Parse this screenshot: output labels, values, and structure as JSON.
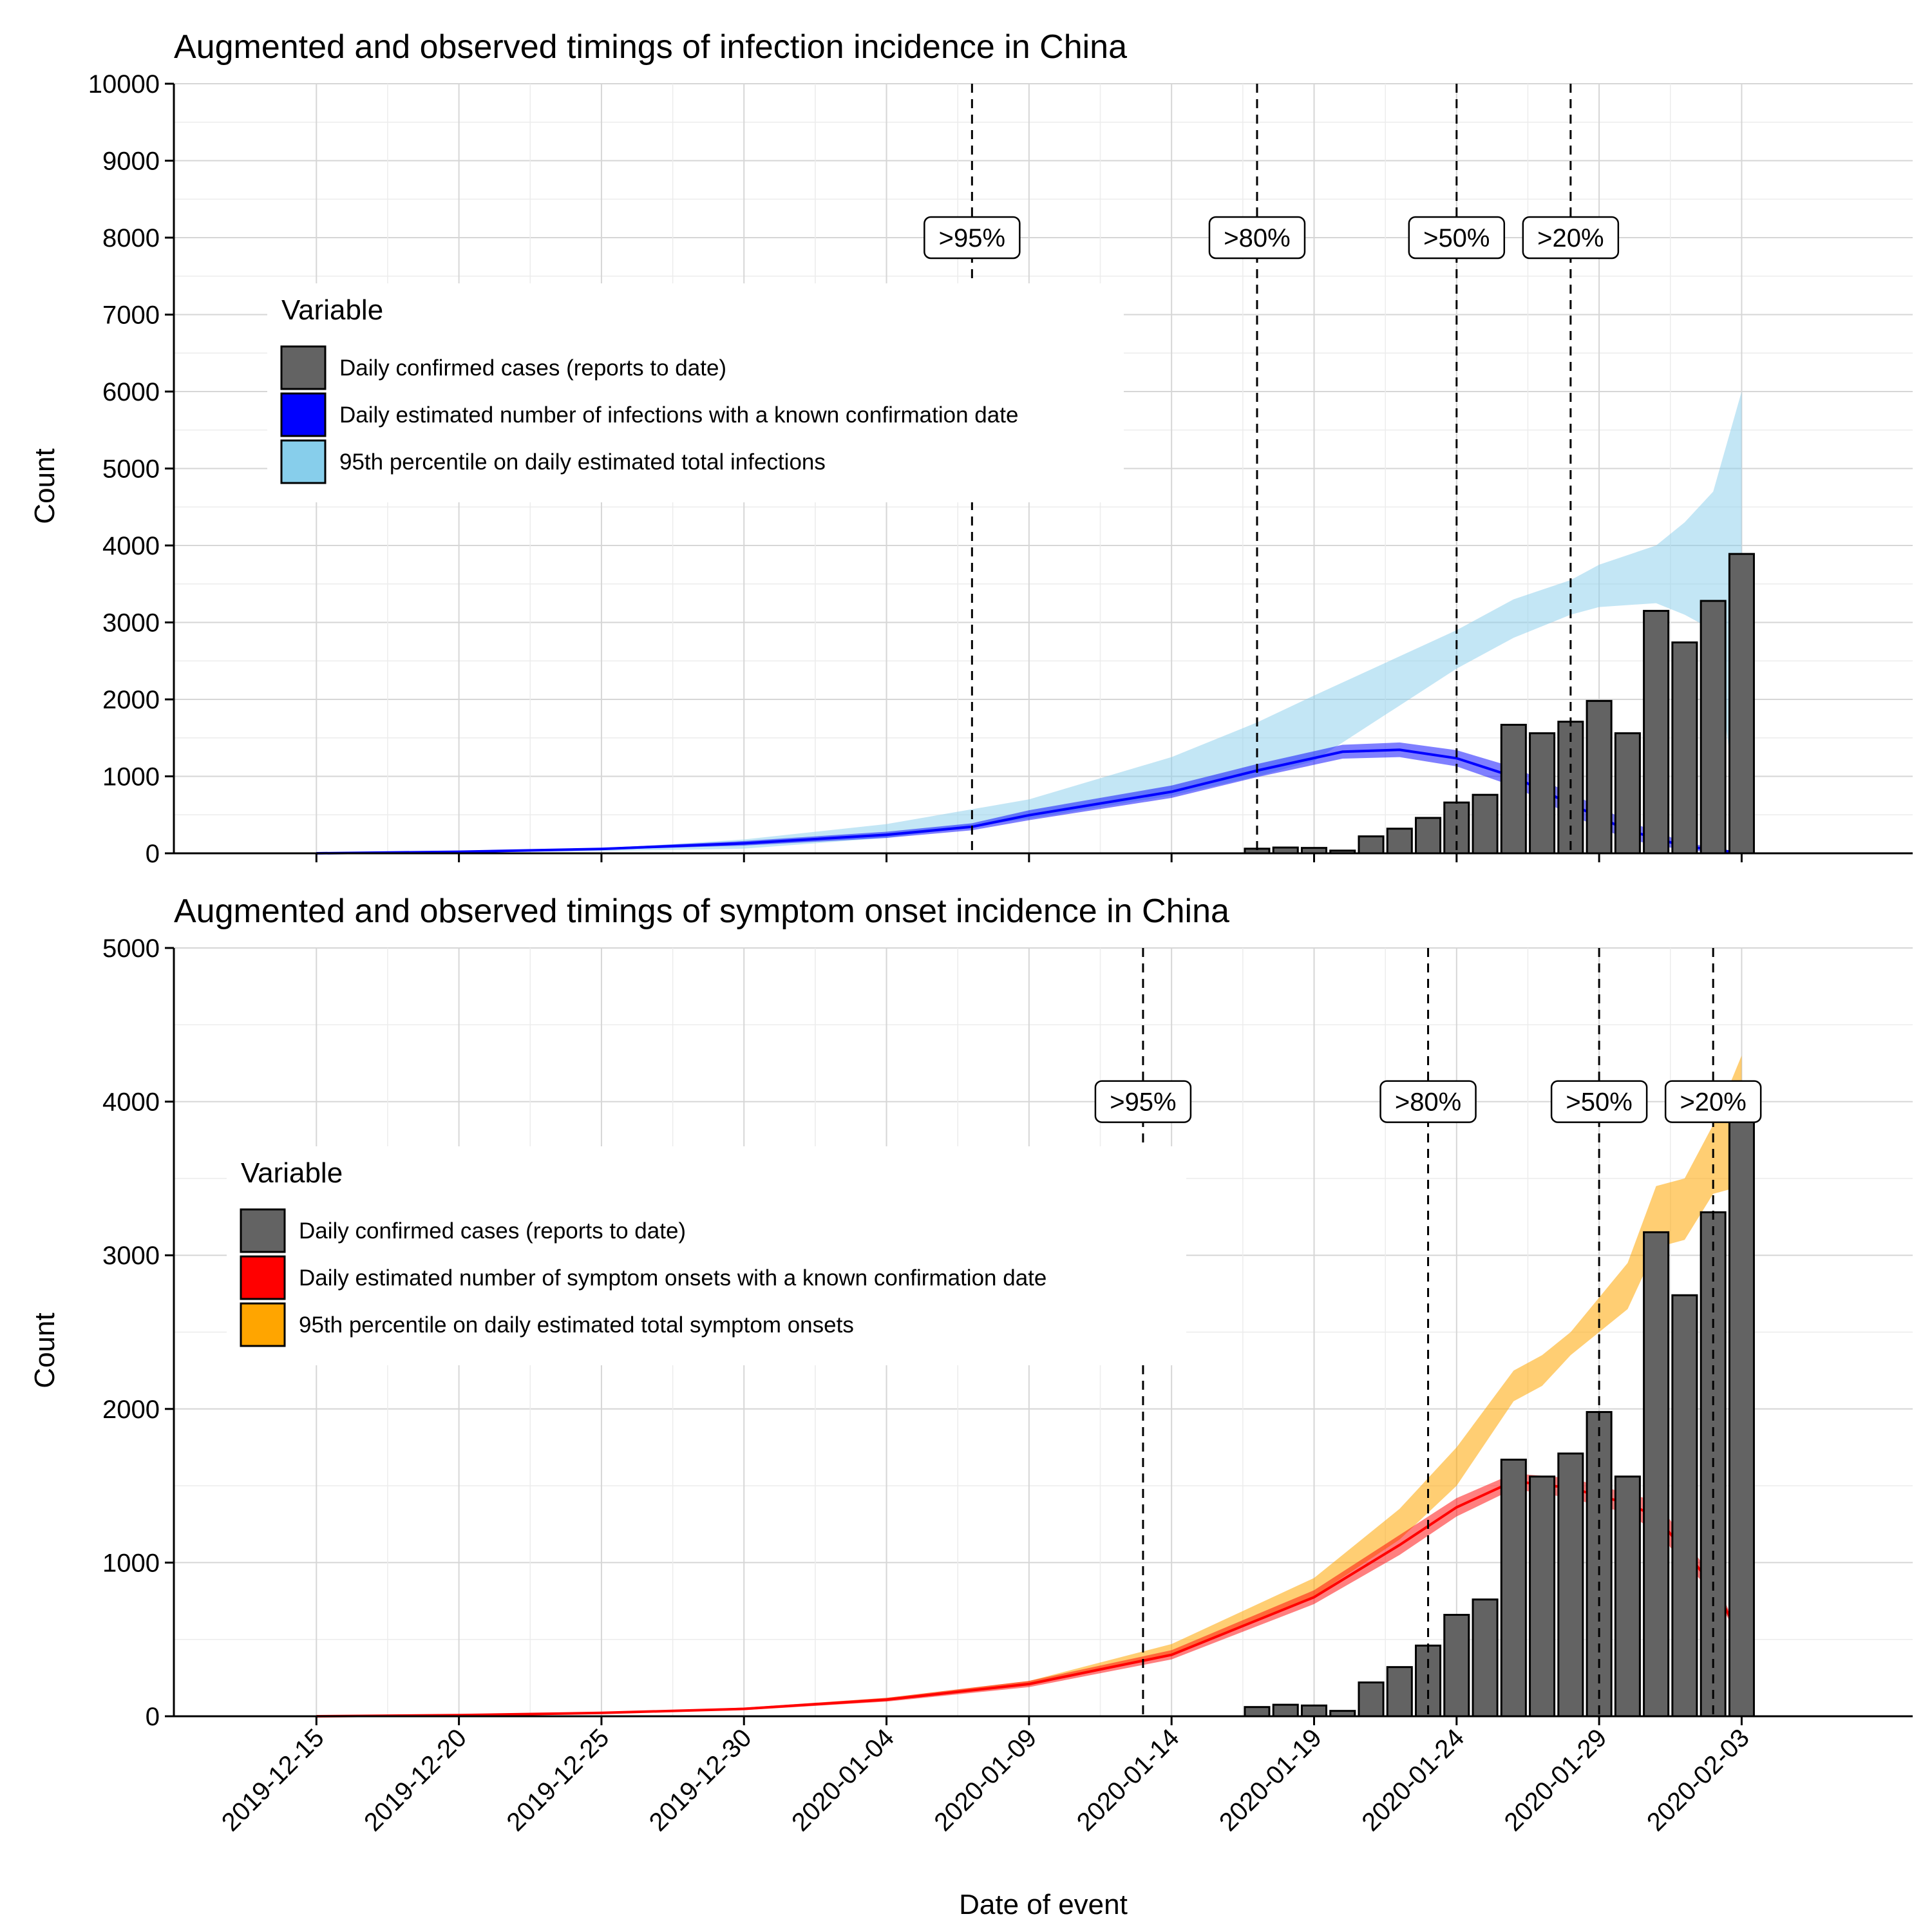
{
  "chart_data": [
    {
      "type": "bar",
      "title": "Augmented and observed timings of infection incidence in China",
      "xlabel": "",
      "ylabel": "Count",
      "xlim": [
        "2019-12-10",
        "2020-02-09"
      ],
      "ylim": [
        0,
        10000
      ],
      "y_ticks": [
        0,
        1000,
        2000,
        3000,
        4000,
        5000,
        6000,
        7000,
        8000,
        9000,
        10000
      ],
      "grid": true,
      "legend": {
        "title": "Variable",
        "placement": "upper-left",
        "items": [
          {
            "label": "Daily confirmed cases (reports to date)",
            "color": "#636363"
          },
          {
            "label": "Daily estimated number of infections with a known confirmation date",
            "color": "#0000ff"
          },
          {
            "label": "95th percentile on daily estimated total infections",
            "color": "#87ceeb"
          }
        ]
      },
      "bars": {
        "name": "Daily confirmed cases (reports to date)",
        "x": [
          "2020-01-17",
          "2020-01-18",
          "2020-01-19",
          "2020-01-20",
          "2020-01-21",
          "2020-01-22",
          "2020-01-23",
          "2020-01-24",
          "2020-01-25",
          "2020-01-26",
          "2020-01-27",
          "2020-01-28",
          "2020-01-29",
          "2020-01-30",
          "2020-01-31",
          "2020-02-01",
          "2020-02-02",
          "2020-02-03",
          "2020-02-04"
        ],
        "values": [
          60,
          75,
          70,
          35,
          220,
          320,
          460,
          660,
          760,
          1670,
          1560,
          1710,
          1980,
          1560,
          3150,
          2740,
          3280,
          3890,
          0
        ],
        "color": "#636363"
      },
      "ribbon_total": {
        "name": "95th percentile on daily estimated total infections",
        "color": "#87ceeb",
        "x": [
          "2019-12-15",
          "2019-12-20",
          "2019-12-25",
          "2019-12-30",
          "2020-01-04",
          "2020-01-09",
          "2020-01-14",
          "2020-01-17",
          "2020-01-19",
          "2020-01-24",
          "2020-01-26",
          "2020-01-28",
          "2020-01-29",
          "2020-01-31",
          "2020-02-01",
          "2020-02-02",
          "2020-02-03"
        ],
        "lower": [
          0,
          10,
          30,
          60,
          200,
          450,
          750,
          1000,
          1200,
          2400,
          2800,
          3100,
          3200,
          3250,
          3100,
          2900,
          100
        ],
        "upper": [
          0,
          20,
          60,
          180,
          380,
          700,
          1250,
          1700,
          2050,
          2900,
          3300,
          3550,
          3750,
          4000,
          4300,
          4700,
          6000
        ]
      },
      "ribbon_known": {
        "name": "Daily estimated number of infections with a known confirmation date",
        "color": "#0000ff",
        "x": [
          "2019-12-15",
          "2019-12-20",
          "2019-12-25",
          "2019-12-30",
          "2020-01-04",
          "2020-01-07",
          "2020-01-09",
          "2020-01-14",
          "2020-01-17",
          "2020-01-20",
          "2020-01-22",
          "2020-01-24",
          "2020-01-26",
          "2020-01-28",
          "2020-01-30",
          "2020-02-01",
          "2020-02-03"
        ],
        "lower": [
          0,
          15,
          45,
          100,
          200,
          300,
          430,
          720,
          990,
          1230,
          1250,
          1130,
          870,
          500,
          180,
          40,
          0
        ],
        "upper": [
          0,
          25,
          70,
          160,
          280,
          390,
          560,
          880,
          1160,
          1410,
          1440,
          1340,
          1120,
          780,
          420,
          140,
          10
        ],
        "values": [
          0,
          20,
          57,
          130,
          240,
          345,
          495,
          800,
          1075,
          1320,
          1345,
          1235,
          995,
          640,
          300,
          90,
          5
        ]
      },
      "annotations": [
        {
          "x": "2020-01-07",
          "label": ">95%",
          "y": 8000
        },
        {
          "x": "2020-01-17",
          "label": ">80%",
          "y": 8000
        },
        {
          "x": "2020-01-24",
          "label": ">50%",
          "y": 8000
        },
        {
          "x": "2020-01-28",
          "label": ">20%",
          "y": 8000
        }
      ]
    },
    {
      "type": "bar",
      "title": "Augmented and observed timings of symptom onset incidence in China",
      "xlabel": "Date of event",
      "ylabel": "Count",
      "xlim": [
        "2019-12-10",
        "2020-02-09"
      ],
      "ylim": [
        0,
        5000
      ],
      "y_ticks": [
        0,
        1000,
        2000,
        3000,
        4000,
        5000
      ],
      "x_ticks": [
        "2019-12-15",
        "2019-12-20",
        "2019-12-25",
        "2019-12-30",
        "2020-01-04",
        "2020-01-09",
        "2020-01-14",
        "2020-01-19",
        "2020-01-24",
        "2020-01-29",
        "2020-02-03"
      ],
      "grid": true,
      "legend": {
        "title": "Variable",
        "placement": "upper-left",
        "items": [
          {
            "label": "Daily confirmed cases (reports to date)",
            "color": "#636363"
          },
          {
            "label": "Daily estimated number of symptom onsets with a known confirmation date",
            "color": "#ff0000"
          },
          {
            "label": "95th percentile on daily estimated total symptom onsets",
            "color": "#ffa500"
          }
        ]
      },
      "bars": {
        "name": "Daily confirmed cases (reports to date)",
        "x": [
          "2020-01-17",
          "2020-01-18",
          "2020-01-19",
          "2020-01-20",
          "2020-01-21",
          "2020-01-22",
          "2020-01-23",
          "2020-01-24",
          "2020-01-25",
          "2020-01-26",
          "2020-01-27",
          "2020-01-28",
          "2020-01-29",
          "2020-01-30",
          "2020-01-31",
          "2020-02-01",
          "2020-02-02",
          "2020-02-03",
          "2020-02-04"
        ],
        "values": [
          60,
          75,
          70,
          35,
          220,
          320,
          460,
          660,
          760,
          1670,
          1560,
          1710,
          1980,
          1560,
          3150,
          2740,
          3280,
          3890,
          0
        ],
        "color": "#636363"
      },
      "ribbon_total": {
        "name": "95th percentile on daily estimated total symptom onsets",
        "color": "#ffa500",
        "x": [
          "2019-12-15",
          "2019-12-20",
          "2019-12-25",
          "2019-12-30",
          "2020-01-04",
          "2020-01-09",
          "2020-01-14",
          "2020-01-19",
          "2020-01-22",
          "2020-01-24",
          "2020-01-26",
          "2020-01-27",
          "2020-01-28",
          "2020-01-30",
          "2020-01-31",
          "2020-02-01",
          "2020-02-02",
          "2020-02-03"
        ],
        "lower": [
          0,
          5,
          20,
          45,
          100,
          200,
          400,
          780,
          1150,
          1500,
          2050,
          2150,
          2350,
          2650,
          3050,
          3100,
          3400,
          3450
        ],
        "upper": [
          0,
          8,
          25,
          55,
          120,
          230,
          470,
          900,
          1350,
          1750,
          2250,
          2350,
          2500,
          2950,
          3450,
          3500,
          3850,
          4300
        ]
      },
      "ribbon_known": {
        "name": "Daily estimated number of symptom onsets with a known confirmation date",
        "color": "#ff0000",
        "x": [
          "2019-12-15",
          "2019-12-20",
          "2019-12-25",
          "2019-12-30",
          "2020-01-04",
          "2020-01-09",
          "2020-01-14",
          "2020-01-19",
          "2020-01-22",
          "2020-01-24",
          "2020-01-26",
          "2020-01-28",
          "2020-01-30",
          "2020-01-31",
          "2020-02-02",
          "2020-02-03"
        ],
        "lower": [
          0,
          5,
          18,
          40,
          95,
          190,
          370,
          730,
          1050,
          1300,
          1480,
          1420,
          1320,
          1200,
          800,
          490
        ],
        "upper": [
          0,
          9,
          26,
          56,
          120,
          230,
          430,
          820,
          1180,
          1420,
          1580,
          1550,
          1450,
          1400,
          900,
          520
        ],
        "values": [
          0,
          7,
          22,
          48,
          108,
          210,
          400,
          775,
          1115,
          1360,
          1530,
          1485,
          1385,
          1300,
          850,
          505
        ]
      },
      "annotations": [
        {
          "x": "2020-01-13",
          "label": ">95%",
          "y": 4000
        },
        {
          "x": "2020-01-23",
          "label": ">80%",
          "y": 4000
        },
        {
          "x": "2020-01-29",
          "label": ">50%",
          "y": 4000
        },
        {
          "x": "2020-02-02",
          "label": ">20%",
          "y": 4000
        }
      ]
    }
  ]
}
